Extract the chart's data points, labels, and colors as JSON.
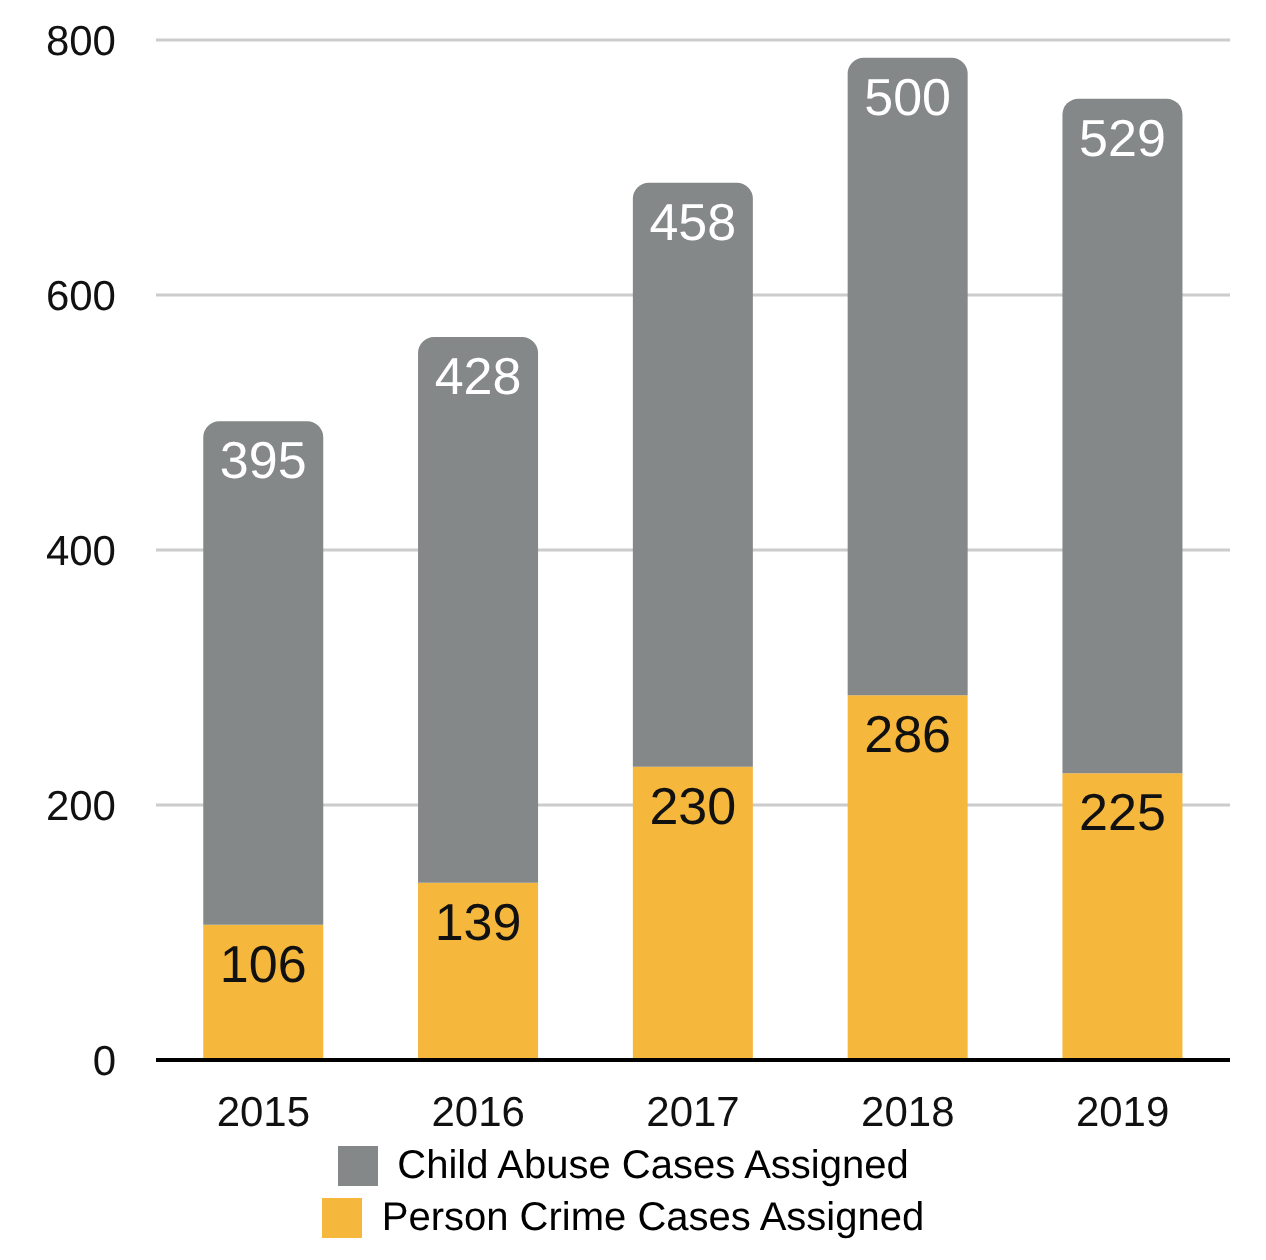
{
  "chart_data": {
    "type": "bar",
    "stacked": true,
    "categories": [
      "2015",
      "2016",
      "2017",
      "2018",
      "2019"
    ],
    "series": [
      {
        "name": "Person Crime Cases Assigned",
        "color": "#f5b73c",
        "values": [
          106,
          139,
          230,
          286,
          225
        ]
      },
      {
        "name": "Child Abuse Cases Assigned",
        "color": "#858888",
        "values": [
          395,
          428,
          458,
          500,
          529
        ]
      }
    ],
    "ylim": [
      0,
      800
    ],
    "yticks": [
      0,
      200,
      400,
      600,
      800
    ],
    "grid": "y",
    "legend": "bottom",
    "data_labels": true
  }
}
